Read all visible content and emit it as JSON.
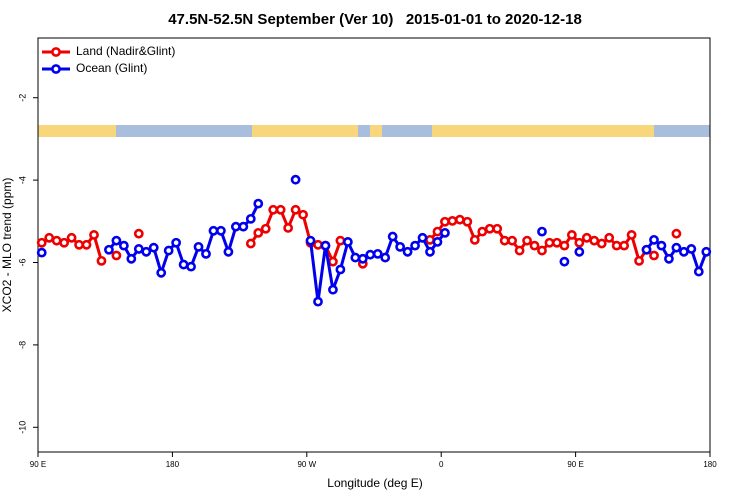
{
  "chart_data": {
    "type": "line",
    "title": "47.5N-52.5N September (Ver 10)   2015-01-01 to 2020-12-18",
    "x_label": "Longitude (deg E)",
    "y_label": "XCO2 - MLO trend (ppm)",
    "xlim": [
      90,
      540
    ],
    "xticks": [
      {
        "value": 90,
        "label": "90 E"
      },
      {
        "value": 180,
        "label": "180"
      },
      {
        "value": 270,
        "label": "90 W"
      },
      {
        "value": 360,
        "label": "0"
      },
      {
        "value": 450,
        "label": "90 E"
      },
      {
        "value": 540,
        "label": "180"
      }
    ],
    "ylim": [
      -10.6,
      -0.55
    ],
    "yticks": [
      -2,
      -4,
      -6,
      -8,
      -10
    ],
    "legend_position": "upper left",
    "x": [
      92.5,
      97.5,
      102.5,
      107.5,
      112.5,
      117.5,
      122.5,
      127.5,
      132.5,
      137.5,
      142.5,
      147.5,
      152.5,
      157.5,
      162.5,
      167.5,
      172.5,
      177.5,
      182.5,
      187.5,
      192.5,
      197.5,
      202.5,
      207.5,
      212.5,
      217.5,
      222.5,
      227.5,
      232.5,
      237.5,
      242.5,
      247.5,
      252.5,
      257.5,
      262.5,
      267.5,
      272.5,
      277.5,
      282.5,
      287.5,
      292.5,
      297.5,
      302.5,
      307.5,
      312.5,
      317.5,
      322.5,
      327.5,
      332.5,
      337.5,
      342.5,
      347.5,
      352.5,
      357.5,
      362.5,
      367.5,
      372.5,
      377.5,
      382.5,
      387.5,
      392.5,
      397.5,
      402.5,
      407.5,
      412.5,
      417.5,
      422.5,
      427.5,
      432.5,
      437.5,
      442.5,
      447.5,
      452.5,
      457.5,
      462.5,
      467.5,
      472.5,
      477.5,
      482.5,
      487.5,
      492.5,
      497.5,
      502.5,
      507.5,
      512.5,
      517.5,
      522.5,
      527.5,
      532.5,
      537.5
    ],
    "series": [
      {
        "name": "Land (Nadir&Glint)",
        "color": "#ee0000",
        "values": [
          -5.52,
          -5.4,
          -5.47,
          -5.52,
          -5.4,
          -5.57,
          -5.57,
          -5.33,
          -5.96,
          null,
          -5.83,
          null,
          null,
          -5.3,
          null,
          null,
          null,
          null,
          null,
          null,
          null,
          null,
          null,
          null,
          null,
          null,
          null,
          null,
          -5.54,
          -5.28,
          -5.18,
          -4.72,
          -4.72,
          -5.16,
          -4.72,
          -4.84,
          -5.52,
          -5.57,
          -5.59,
          -5.98,
          -5.47,
          null,
          null,
          -6.03,
          null,
          null,
          null,
          null,
          null,
          null,
          null,
          null,
          -5.45,
          -5.25,
          -5.01,
          -4.99,
          -4.96,
          -5.01,
          -5.45,
          -5.25,
          -5.18,
          -5.18,
          -5.47,
          -5.47,
          -5.71,
          -5.47,
          -5.59,
          -5.71,
          -5.52,
          -5.52,
          -5.59,
          -5.33,
          -5.52,
          -5.4,
          -5.47,
          -5.54,
          -5.4,
          -5.59,
          -5.59,
          -5.33,
          -5.96,
          -5.69,
          -5.83,
          null,
          null,
          -5.3,
          null,
          null,
          null,
          null
        ]
      },
      {
        "name": "Ocean (Glint)",
        "color": "#0000ee",
        "values": [
          -5.76,
          null,
          null,
          null,
          null,
          null,
          null,
          null,
          null,
          -5.69,
          -5.47,
          -5.59,
          -5.91,
          -5.67,
          -5.74,
          -5.64,
          -6.25,
          -5.71,
          -5.52,
          -6.05,
          -6.1,
          -5.62,
          -5.79,
          -5.23,
          -5.23,
          -5.74,
          -5.13,
          -5.13,
          -4.94,
          -4.57,
          null,
          null,
          null,
          null,
          -3.99,
          null,
          -5.47,
          -6.95,
          -5.59,
          -6.66,
          -6.17,
          -5.5,
          -5.88,
          -5.91,
          -5.81,
          -5.79,
          -5.88,
          -5.37,
          -5.62,
          -5.74,
          -5.59,
          -5.4,
          -5.74,
          -5.5,
          -5.28,
          null,
          null,
          null,
          null,
          null,
          null,
          null,
          null,
          null,
          null,
          null,
          null,
          -5.25,
          null,
          null,
          -5.98,
          null,
          -5.74,
          null,
          null,
          null,
          null,
          null,
          null,
          null,
          null,
          -5.69,
          -5.45,
          -5.59,
          -5.91,
          -5.64,
          -5.74,
          -5.67,
          -6.22,
          -5.74
        ]
      }
    ]
  }
}
